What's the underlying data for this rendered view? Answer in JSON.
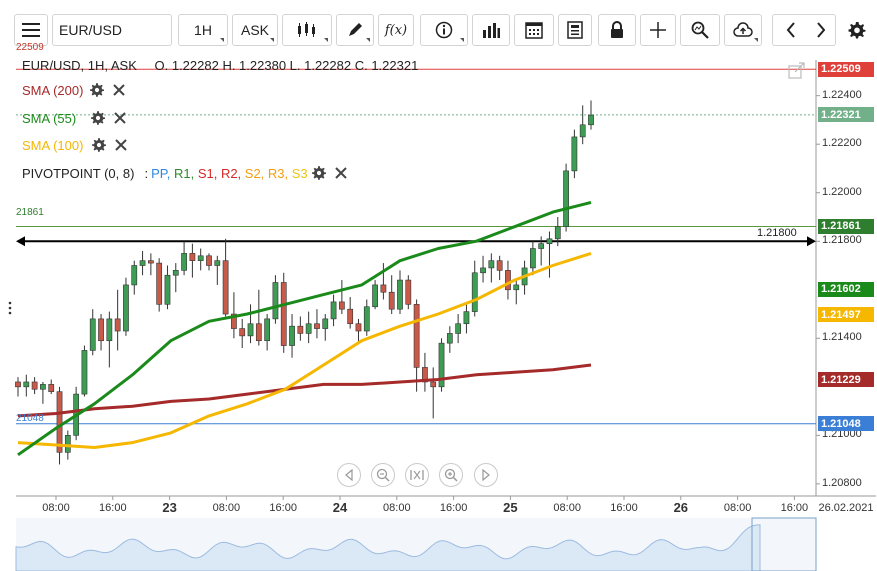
{
  "toolbar": {
    "symbol": "EUR/USD",
    "timeframe": "1H",
    "price_type": "ASK"
  },
  "legend": {
    "header": "EUR/USD, 1H, ASK",
    "ohlc": "O. 1.22282 H. 1.22380 L. 1.22282 C. 1.22321",
    "sma200": "SMA (200)",
    "sma55": "SMA (55)",
    "sma100": "SMA (100)",
    "pivot_label": "PIVOTPOINT (0, 8)",
    "pivot_sep": ":",
    "pivot_items": [
      {
        "label": "PP",
        "color": "#2e86de"
      },
      {
        "label": "R1",
        "color": "#2e8b2e"
      },
      {
        "label": "S1",
        "color": "#d62828"
      },
      {
        "label": "R2",
        "color": "#d62828"
      },
      {
        "label": "S2",
        "color": "#f39c12"
      },
      {
        "label": "R3",
        "color": "#f39c12"
      },
      {
        "label": "S3",
        "color": "#f1c40f"
      }
    ]
  },
  "colors": {
    "sma200": "#a52a2a",
    "sma55": "#1a8a1a",
    "sma100": "#f5b700",
    "bull": "#3f9c55",
    "bear": "#c85a4a",
    "resistance": "#e0403a",
    "support": "#3a7fd5",
    "pivot_green": "#5a9a3a",
    "current": "#72b08a"
  },
  "price_axis": {
    "ticks": [
      {
        "price": 1.224,
        "label": "1.22400"
      },
      {
        "price": 1.222,
        "label": "1.22200"
      },
      {
        "price": 1.22,
        "label": "1.22000"
      },
      {
        "price": 1.218,
        "label": "1.21800"
      },
      {
        "price": 1.214,
        "label": "1.21400"
      },
      {
        "price": 1.21,
        "label": "1.21000"
      },
      {
        "price": 1.208,
        "label": "1.20800"
      }
    ],
    "tags": [
      {
        "price": 1.22509,
        "label": "1.22509",
        "color": "#e0403a"
      },
      {
        "price": 1.22321,
        "label": "1.22321",
        "color": "#72b08a"
      },
      {
        "price": 1.21861,
        "label": "1.21861",
        "color": "#2f7d2f"
      },
      {
        "price": 1.21602,
        "label": "1.21602",
        "color": "#1a8a1a"
      },
      {
        "price": 1.21497,
        "label": "1.21497",
        "color": "#f5b700"
      },
      {
        "price": 1.21229,
        "label": "1.21229",
        "color": "#a52a2a"
      },
      {
        "price": 1.21048,
        "label": "1.21048",
        "color": "#3a7fd5"
      }
    ]
  },
  "left_labels": {
    "resistance": "22509",
    "green_line": "21861",
    "blue_line": "21048"
  },
  "hline_label": "1.21800",
  "time_axis": [
    {
      "label": "08:00",
      "big": false
    },
    {
      "label": "16:00",
      "big": false
    },
    {
      "label": "23",
      "big": true
    },
    {
      "label": "08:00",
      "big": false
    },
    {
      "label": "16:00",
      "big": false
    },
    {
      "label": "24",
      "big": true
    },
    {
      "label": "08:00",
      "big": false
    },
    {
      "label": "16:00",
      "big": false
    },
    {
      "label": "25",
      "big": true
    },
    {
      "label": "08:00",
      "big": false
    },
    {
      "label": "16:00",
      "big": false
    },
    {
      "label": "26",
      "big": true
    },
    {
      "label": "08:00",
      "big": false
    },
    {
      "label": "16:00",
      "big": false
    },
    {
      "label": "26.02.2021",
      "big": false
    }
  ],
  "chart_data": {
    "type": "candlestick",
    "symbol": "EUR/USD",
    "interval": "1H",
    "y_range": [
      1.2075,
      1.2258
    ],
    "candles": [
      [
        1.2122,
        1.2124,
        1.2116,
        1.212
      ],
      [
        1.212,
        1.2125,
        1.2116,
        1.2122
      ],
      [
        1.2122,
        1.2124,
        1.2117,
        1.2119
      ],
      [
        1.2119,
        1.2122,
        1.2113,
        1.2121
      ],
      [
        1.2121,
        1.2123,
        1.2117,
        1.2118
      ],
      [
        1.2118,
        1.212,
        1.2088,
        1.2093
      ],
      [
        1.2093,
        1.2102,
        1.209,
        1.21
      ],
      [
        1.21,
        1.212,
        1.2098,
        1.2117
      ],
      [
        1.2117,
        1.2137,
        1.2116,
        1.2135
      ],
      [
        1.2135,
        1.2152,
        1.2133,
        1.2148
      ],
      [
        1.2148,
        1.215,
        1.2135,
        1.2139
      ],
      [
        1.2139,
        1.2151,
        1.2128,
        1.2148
      ],
      [
        1.2148,
        1.216,
        1.2135,
        1.2143
      ],
      [
        1.2143,
        1.2165,
        1.2141,
        1.2162
      ],
      [
        1.2162,
        1.2172,
        1.2158,
        1.217
      ],
      [
        1.217,
        1.2176,
        1.2166,
        1.2172
      ],
      [
        1.2172,
        1.2175,
        1.2166,
        1.2171
      ],
      [
        1.2171,
        1.2173,
        1.2151,
        1.2154
      ],
      [
        1.2154,
        1.217,
        1.2152,
        1.2166
      ],
      [
        1.2166,
        1.2171,
        1.2159,
        1.2168
      ],
      [
        1.2168,
        1.218,
        1.2166,
        1.2175
      ],
      [
        1.2175,
        1.2179,
        1.2165,
        1.2172
      ],
      [
        1.2172,
        1.2177,
        1.2168,
        1.2174
      ],
      [
        1.2174,
        1.2175,
        1.2168,
        1.217
      ],
      [
        1.217,
        1.2174,
        1.2162,
        1.2172
      ],
      [
        1.2172,
        1.2181,
        1.2149,
        1.215
      ],
      [
        1.215,
        1.2159,
        1.214,
        1.2144
      ],
      [
        1.2144,
        1.2148,
        1.2136,
        1.2141
      ],
      [
        1.2141,
        1.2154,
        1.2138,
        1.2146
      ],
      [
        1.2146,
        1.216,
        1.2137,
        1.2139
      ],
      [
        1.2139,
        1.215,
        1.2135,
        1.2148
      ],
      [
        1.2148,
        1.2166,
        1.2146,
        1.2163
      ],
      [
        1.2163,
        1.2167,
        1.2134,
        1.2137
      ],
      [
        1.2137,
        1.215,
        1.2132,
        1.2145
      ],
      [
        1.2145,
        1.2149,
        1.2139,
        1.2142
      ],
      [
        1.2142,
        1.2151,
        1.2138,
        1.2146
      ],
      [
        1.2146,
        1.2152,
        1.214,
        1.2144
      ],
      [
        1.2144,
        1.215,
        1.2139,
        1.2148
      ],
      [
        1.2148,
        1.2158,
        1.2145,
        1.2155
      ],
      [
        1.2155,
        1.2164,
        1.215,
        1.2152
      ],
      [
        1.2152,
        1.2157,
        1.2144,
        1.2146
      ],
      [
        1.2146,
        1.2148,
        1.2138,
        1.2143
      ],
      [
        1.2143,
        1.2156,
        1.2141,
        1.2153
      ],
      [
        1.2153,
        1.2164,
        1.2152,
        1.2162
      ],
      [
        1.2162,
        1.2171,
        1.2156,
        1.2159
      ],
      [
        1.2159,
        1.2166,
        1.215,
        1.2152
      ],
      [
        1.2152,
        1.2168,
        1.215,
        1.2164
      ],
      [
        1.2164,
        1.2166,
        1.2152,
        1.2154
      ],
      [
        1.2154,
        1.2156,
        1.2118,
        1.2128
      ],
      [
        1.2128,
        1.2134,
        1.2118,
        1.2122
      ],
      [
        1.2122,
        1.2128,
        1.2107,
        1.212
      ],
      [
        1.212,
        1.214,
        1.2118,
        1.2138
      ],
      [
        1.2138,
        1.2145,
        1.2134,
        1.2142
      ],
      [
        1.2142,
        1.215,
        1.2138,
        1.2146
      ],
      [
        1.2146,
        1.2155,
        1.2142,
        1.2151
      ],
      [
        1.2151,
        1.2172,
        1.2149,
        1.2167
      ],
      [
        1.2167,
        1.2174,
        1.2163,
        1.2169
      ],
      [
        1.2169,
        1.2175,
        1.2163,
        1.2172
      ],
      [
        1.2172,
        1.2174,
        1.2164,
        1.2168
      ],
      [
        1.2168,
        1.2172,
        1.2156,
        1.216
      ],
      [
        1.216,
        1.2164,
        1.2154,
        1.2162
      ],
      [
        1.2162,
        1.2172,
        1.2158,
        1.2169
      ],
      [
        1.2169,
        1.218,
        1.2166,
        1.2177
      ],
      [
        1.2177,
        1.2182,
        1.217,
        1.2179
      ],
      [
        1.2179,
        1.2184,
        1.2165,
        1.2181
      ],
      [
        1.2181,
        1.219,
        1.2178,
        1.2186
      ],
      [
        1.2186,
        1.2212,
        1.2184,
        1.2209
      ],
      [
        1.2209,
        1.2226,
        1.2206,
        1.2223
      ],
      [
        1.2223,
        1.2236,
        1.222,
        1.2228
      ],
      [
        1.2228,
        1.2238,
        1.2226,
        1.2232
      ]
    ],
    "sma55_values": [
      1.2092,
      1.2103,
      1.2113,
      1.2125,
      1.2139,
      1.2147,
      1.215,
      1.2154,
      1.2158,
      1.2162,
      1.2172,
      1.2177,
      1.218,
      1.2186,
      1.2192,
      1.2196
    ],
    "sma100_values": [
      1.2097,
      1.2096,
      1.2095,
      1.2097,
      1.2101,
      1.2108,
      1.2113,
      1.2119,
      1.2129,
      1.2139,
      1.2145,
      1.215,
      1.2156,
      1.2164,
      1.217,
      1.2175
    ],
    "sma200_values": [
      1.2108,
      1.2109,
      1.2111,
      1.2112,
      1.2114,
      1.2115,
      1.2117,
      1.2119,
      1.2121,
      1.2121,
      1.2122,
      1.2123,
      1.2125,
      1.2126,
      1.2127,
      1.2129
    ]
  }
}
